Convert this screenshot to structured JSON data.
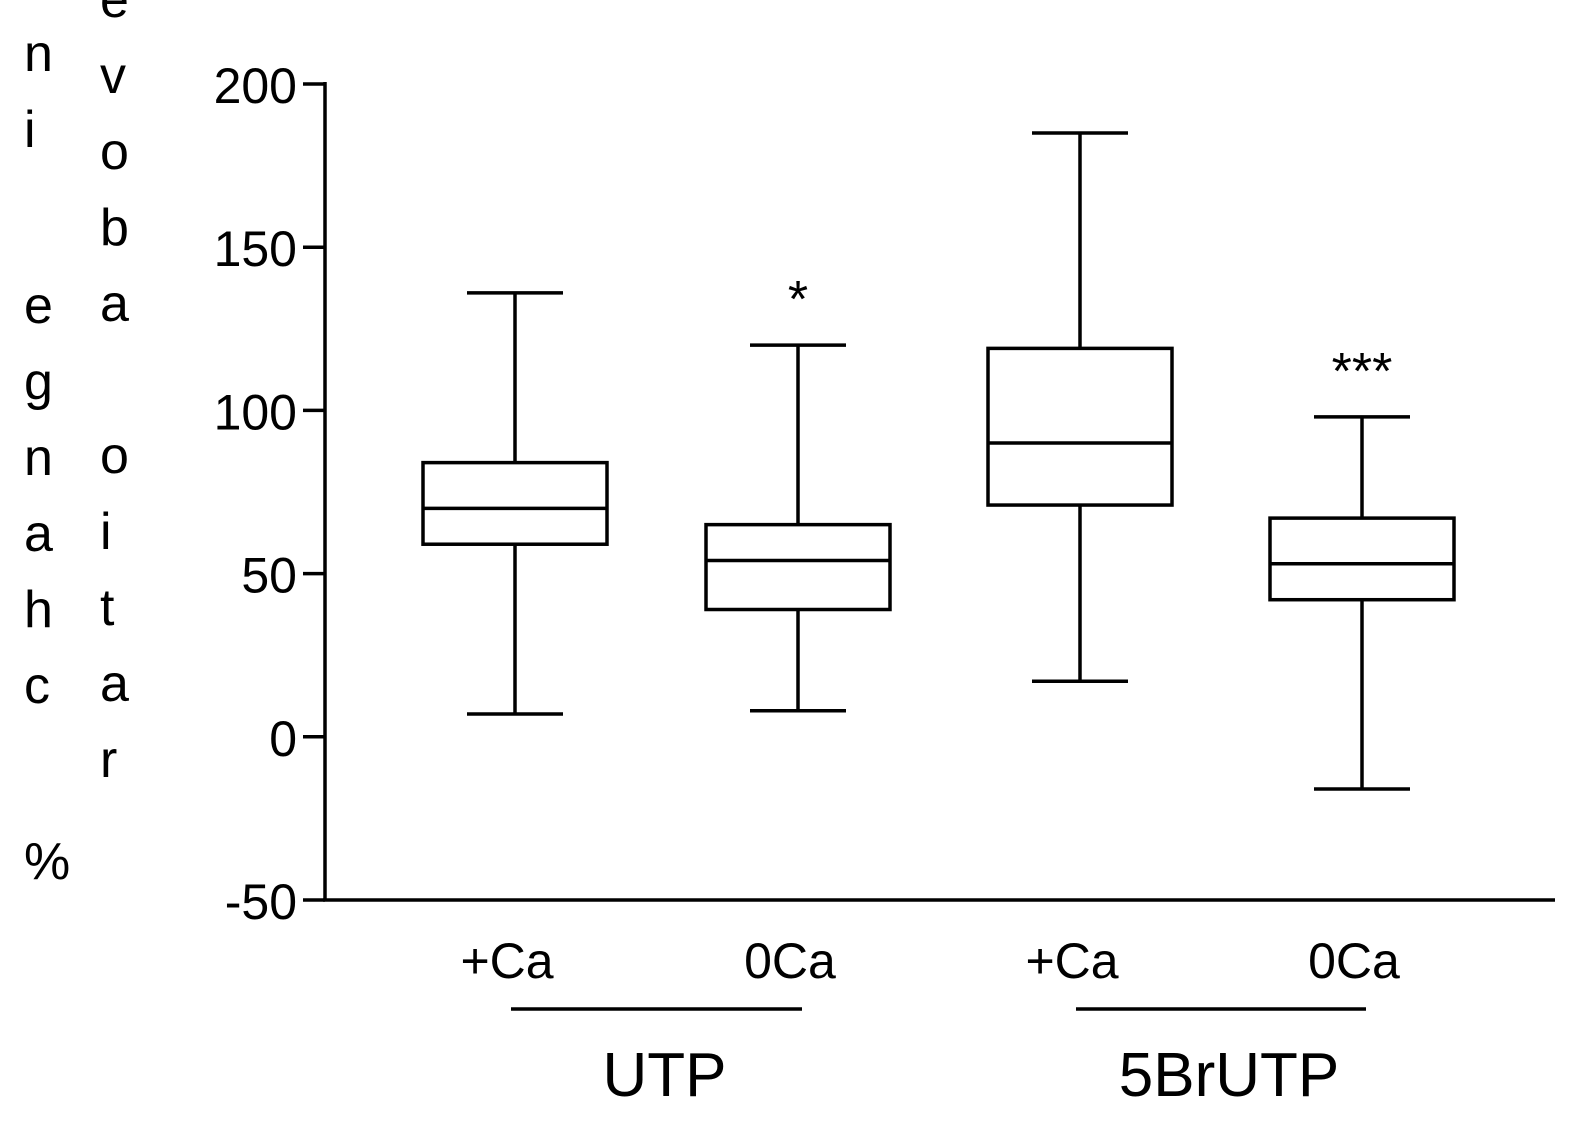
{
  "chart_data": {
    "type": "boxplot",
    "title": "",
    "ylabel_col1": "% change in",
    "ylabel_col2": "ratio above g",
    "ylim": [
      -50,
      200
    ],
    "yticks": [
      -50,
      0,
      50,
      100,
      150,
      200
    ],
    "grid": false,
    "categories": [
      "+Ca",
      "0Ca",
      "+Ca",
      "0Ca"
    ],
    "groups": [
      {
        "label": "UTP",
        "categories": [
          0,
          1
        ]
      },
      {
        "label": "5BrUTP",
        "categories": [
          2,
          3
        ]
      }
    ],
    "boxes": [
      {
        "category": "+Ca",
        "group": "UTP",
        "min": 7,
        "q1": 59,
        "median": 70,
        "q3": 84,
        "max": 136,
        "annotation": ""
      },
      {
        "category": "0Ca",
        "group": "UTP",
        "min": 8,
        "q1": 39,
        "median": 54,
        "q3": 65,
        "max": 120,
        "annotation": "*"
      },
      {
        "category": "+Ca",
        "group": "5BrUTP",
        "min": 17,
        "q1": 71,
        "median": 90,
        "q3": 119,
        "max": 185,
        "annotation": ""
      },
      {
        "category": "0Ca",
        "group": "5BrUTP",
        "min": -16,
        "q1": 42,
        "median": 53,
        "q3": 67,
        "max": 98,
        "annotation": "***"
      }
    ]
  }
}
